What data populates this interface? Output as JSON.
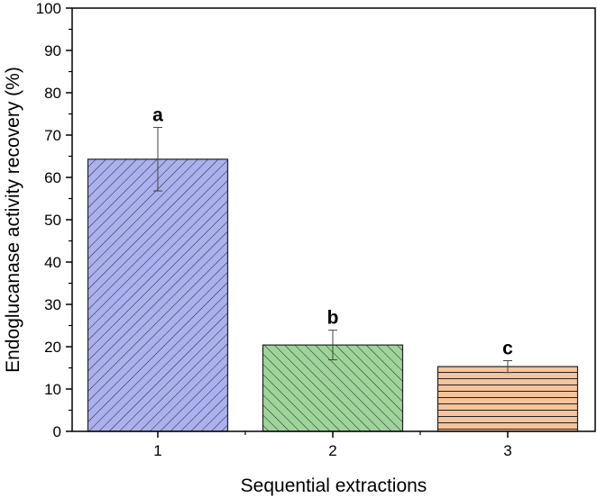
{
  "chart_data": {
    "type": "bar",
    "xlabel": "Sequential extractions",
    "ylabel": "Endoglucanase activity recovery (%)",
    "ylim": [
      0,
      100
    ],
    "yticks": [
      "0",
      "10",
      "20",
      "30",
      "40",
      "50",
      "60",
      "70",
      "80",
      "90",
      "100"
    ],
    "categories": [
      "1",
      "2",
      "3"
    ],
    "values": [
      64.3,
      20.4,
      15.3
    ],
    "errors": [
      7.5,
      3.5,
      1.4
    ],
    "annotations": [
      "a",
      "b",
      "c"
    ],
    "colors": [
      "#aab1ee",
      "#9ed49a",
      "#f5c49c"
    ],
    "patterns": [
      "diagonal",
      "diagonal",
      "horizontal"
    ],
    "grid": false,
    "legend": "none"
  }
}
